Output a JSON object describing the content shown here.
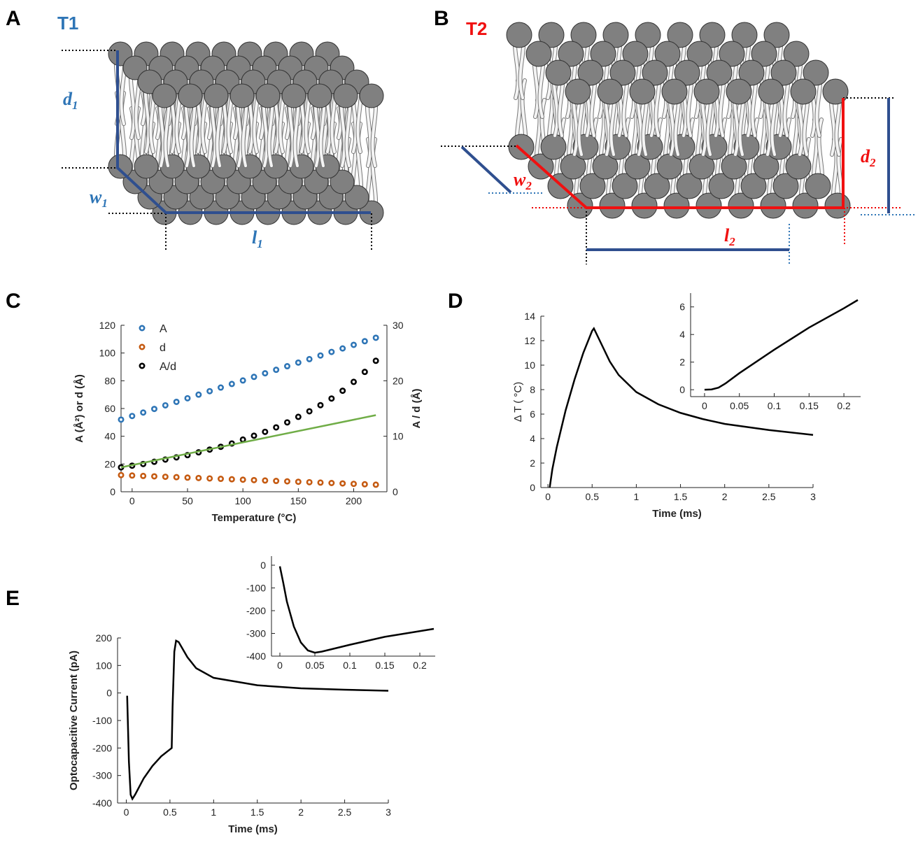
{
  "panels": [
    "A",
    "B",
    "C",
    "D",
    "E"
  ],
  "diagram_a": {
    "title": "T1",
    "d": {
      "main": "d",
      "sub": "1"
    },
    "w": {
      "main": "w",
      "sub": "1"
    },
    "l": {
      "main": "l",
      "sub": "1"
    }
  },
  "diagram_b": {
    "title": "T2",
    "d": {
      "main": "d",
      "sub": "2"
    },
    "w": {
      "main": "w",
      "sub": "2"
    },
    "l": {
      "main": "l",
      "sub": "2"
    }
  },
  "chart_data": [
    {
      "type": "scatter",
      "xlabel": "Temperature (°C)",
      "ylabel": "A (Å²) or d (Å)",
      "y2label": "A / d (Å)",
      "x": [
        -10,
        0,
        10,
        20,
        30,
        40,
        50,
        60,
        70,
        80,
        90,
        100,
        110,
        120,
        130,
        140,
        150,
        160,
        170,
        180,
        190,
        200,
        210,
        220
      ],
      "xlim": [
        -10,
        230
      ],
      "xticks": [
        0,
        50,
        100,
        150,
        200
      ],
      "ylim": [
        0,
        120
      ],
      "yticks": [
        0,
        20,
        40,
        60,
        80,
        100,
        120
      ],
      "y2lim": [
        0,
        30
      ],
      "y2ticks": [
        0,
        10,
        20,
        30
      ],
      "legend": "upper left",
      "series": [
        {
          "name": "A",
          "color": "#2e75b6",
          "values": [
            52,
            54.6,
            57.1,
            59.7,
            62.3,
            64.8,
            67.4,
            70,
            72.5,
            75.1,
            77.7,
            80.2,
            82.8,
            85.4,
            87.9,
            90.5,
            93.1,
            95.6,
            98.2,
            100.8,
            103.3,
            105.9,
            108.5,
            111
          ]
        },
        {
          "name": "d",
          "color": "#c55a11",
          "values": [
            12,
            11.7,
            11.4,
            11.1,
            10.8,
            10.5,
            10.2,
            9.9,
            9.6,
            9.3,
            9,
            8.7,
            8.4,
            8.1,
            7.8,
            7.5,
            7.2,
            6.9,
            6.6,
            6.3,
            6,
            5.7,
            5.4,
            5.1
          ]
        },
        {
          "name": "A/d",
          "color": "#000000",
          "axis": "y2",
          "values": [
            4.4,
            4.7,
            5,
            5.4,
            5.8,
            6.2,
            6.6,
            7.1,
            7.6,
            8.1,
            8.7,
            9.4,
            10.1,
            10.8,
            11.6,
            12.5,
            13.5,
            14.5,
            15.6,
            16.8,
            18.2,
            19.8,
            21.6,
            23.6
          ]
        },
        {
          "color": "#70ad47",
          "axis": "y2",
          "style": "line",
          "x": [
            -10,
            220
          ],
          "values": [
            4.4,
            13.8
          ]
        }
      ]
    },
    {
      "type": "line",
      "xlabel": "Time (ms)",
      "ylabel": "Δ T ( °C)",
      "color": "#000000",
      "x": [
        0.02,
        0.05,
        0.1,
        0.2,
        0.3,
        0.4,
        0.5,
        0.52,
        0.6,
        0.7,
        0.8,
        1,
        1.25,
        1.5,
        1.75,
        2,
        2.5,
        3
      ],
      "values": [
        0,
        1.5,
        3.3,
        6.3,
        8.8,
        11,
        12.8,
        13,
        11.8,
        10.3,
        9.2,
        7.8,
        6.8,
        6.1,
        5.6,
        5.2,
        4.7,
        4.3
      ],
      "xlim": [
        -0.08,
        3
      ],
      "xticks": [
        0,
        0.5,
        1,
        1.5,
        2,
        2.5,
        3
      ],
      "ylim": [
        0,
        14
      ],
      "yticks": [
        0,
        2,
        4,
        6,
        8,
        10,
        12,
        14
      ]
    },
    {
      "type": "line",
      "color": "#000000",
      "x": [
        0,
        0.01,
        0.02,
        0.03,
        0.05,
        0.1,
        0.15,
        0.2,
        0.22
      ],
      "values": [
        0,
        0.02,
        0.15,
        0.45,
        1.2,
        2.9,
        4.5,
        5.9,
        6.5
      ],
      "xlim": [
        -0.02,
        0.224
      ],
      "xticks": [
        0,
        0.05,
        0.1,
        0.15,
        0.2
      ],
      "ylim": [
        -0.5,
        7
      ],
      "yticks": [
        0,
        2,
        4,
        6
      ]
    },
    {
      "type": "line",
      "xlabel": "Time (ms)",
      "ylabel": "Optocapacitive Current (pA)",
      "color": "#000000",
      "x": [
        0.01,
        0.03,
        0.05,
        0.07,
        0.1,
        0.2,
        0.3,
        0.4,
        0.5,
        0.52,
        0.53,
        0.55,
        0.57,
        0.6,
        0.7,
        0.8,
        1,
        1.5,
        2,
        2.5,
        3
      ],
      "values": [
        -10,
        -250,
        -370,
        -385,
        -370,
        -310,
        -265,
        -230,
        -205,
        -200,
        -50,
        150,
        190,
        185,
        130,
        90,
        55,
        28,
        17,
        12,
        8
      ],
      "xlim": [
        -0.1,
        3
      ],
      "xticks": [
        0,
        0.5,
        1,
        1.5,
        2,
        2.5,
        3
      ],
      "ylim": [
        -400,
        200
      ],
      "yticks": [
        -400,
        -300,
        -200,
        -100,
        0,
        100,
        200
      ]
    },
    {
      "type": "line",
      "color": "#000000",
      "x": [
        0,
        0.005,
        0.01,
        0.02,
        0.03,
        0.04,
        0.05,
        0.06,
        0.08,
        0.1,
        0.15,
        0.2,
        0.22
      ],
      "values": [
        -5,
        -80,
        -160,
        -270,
        -340,
        -375,
        -385,
        -380,
        -365,
        -350,
        -315,
        -290,
        -280
      ],
      "xlim": [
        -0.012,
        0.222
      ],
      "xticks": [
        0,
        0.05,
        0.1,
        0.15,
        0.2
      ],
      "ylim": [
        -400,
        40
      ],
      "yticks": [
        -400,
        -300,
        -200,
        -100,
        0
      ]
    }
  ]
}
